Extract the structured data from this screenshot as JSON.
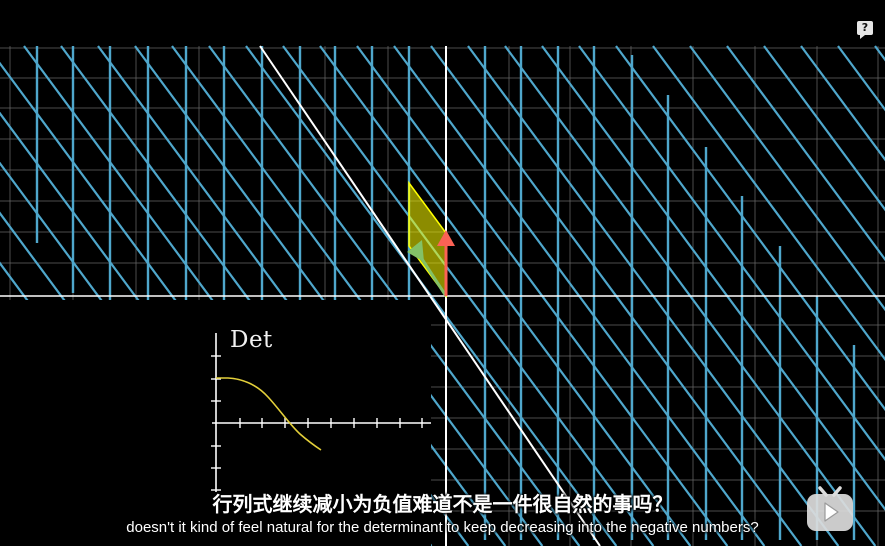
{
  "video": {
    "help_button_label": "?",
    "subtitle_zh": "行列式继续减小为负值难道不是一件很自然的事吗？",
    "subtitle_en": "doesn't it kind of feel natural for the determinant to keep decreasing into the negative numbers?",
    "logo_icon": "bilibili-tv-icon"
  },
  "scene": {
    "grid_line_color": "#4fa7cc",
    "background_grid_color": "#6b6b6b",
    "basis_vector_i_color": "#83c167",
    "basis_vector_j_color": "#fc6255",
    "area_fill_color": "#ffff00",
    "inset_curve_color": "#e3cf3a"
  },
  "inset_graph": {
    "label": "Det"
  }
}
